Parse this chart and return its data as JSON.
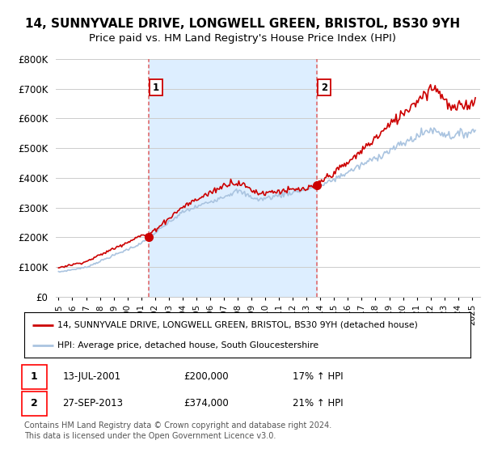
{
  "title": "14, SUNNYVALE DRIVE, LONGWELL GREEN, BRISTOL, BS30 9YH",
  "subtitle": "Price paid vs. HM Land Registry's House Price Index (HPI)",
  "title_fontsize": 11,
  "subtitle_fontsize": 9.5,
  "ylim": [
    0,
    800000
  ],
  "yticks": [
    0,
    100000,
    200000,
    300000,
    400000,
    500000,
    600000,
    700000,
    800000
  ],
  "ytick_labels": [
    "£0",
    "£100K",
    "£200K",
    "£300K",
    "£400K",
    "£500K",
    "£600K",
    "£700K",
    "£800K"
  ],
  "sale1_year": 2001.54,
  "sale1_price": 200000,
  "sale1_label": "1",
  "sale2_year": 2013.74,
  "sale2_price": 374000,
  "sale2_label": "2",
  "hpi_color": "#aac4e0",
  "price_color": "#cc0000",
  "vline_color": "#e06060",
  "shade_color": "#ddeeff",
  "background_color": "#ffffff",
  "grid_color": "#cccccc",
  "legend_label_price": "14, SUNNYVALE DRIVE, LONGWELL GREEN, BRISTOL, BS30 9YH (detached house)",
  "legend_label_hpi": "HPI: Average price, detached house, South Gloucestershire",
  "table_row1": [
    "1",
    "13-JUL-2001",
    "£200,000",
    "17% ↑ HPI"
  ],
  "table_row2": [
    "2",
    "27-SEP-2013",
    "£374,000",
    "21% ↑ HPI"
  ],
  "footnote1": "Contains HM Land Registry data © Crown copyright and database right 2024.",
  "footnote2": "This data is licensed under the Open Government Licence v3.0.",
  "x_start": 1994.8,
  "x_end": 2025.6,
  "xtick_years": [
    1995,
    1996,
    1997,
    1998,
    1999,
    2000,
    2001,
    2002,
    2003,
    2004,
    2005,
    2006,
    2007,
    2008,
    2009,
    2010,
    2011,
    2012,
    2013,
    2014,
    2015,
    2016,
    2017,
    2018,
    2019,
    2020,
    2021,
    2022,
    2023,
    2024,
    2025
  ]
}
